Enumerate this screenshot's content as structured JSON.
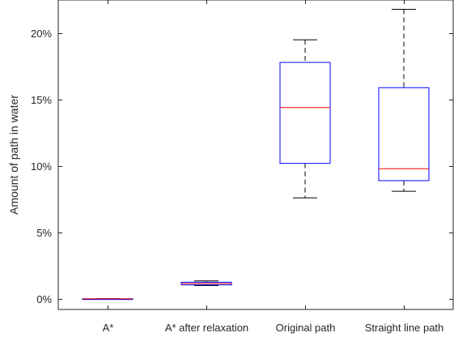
{
  "chart_data": {
    "type": "boxplot",
    "title": "",
    "xlabel": "",
    "ylabel": "Amount of path in water",
    "categories": [
      "A*",
      "A* after relaxation",
      "Original path",
      "Straight line path"
    ],
    "ylim": [
      -0.8,
      22.5
    ],
    "yticks": [
      0,
      5,
      10,
      15,
      20
    ],
    "ytick_labels": [
      "0%",
      "5%",
      "10%",
      "15%",
      "20%"
    ],
    "grid": false,
    "colors": {
      "box": "#0000ff",
      "median": "#ff0000",
      "whisker": "#000000",
      "axis": "#262626"
    },
    "boxes": [
      {
        "label": "A*",
        "whisker_low": 0.0,
        "q1": 0.0,
        "median": 0.0,
        "q3": 0.0,
        "whisker_high": 0.0
      },
      {
        "label": "A* after relaxation",
        "whisker_low": 1.0,
        "q1": 1.05,
        "median": 1.15,
        "q3": 1.25,
        "whisker_high": 1.35
      },
      {
        "label": "Original path",
        "whisker_low": 7.6,
        "q1": 10.2,
        "median": 14.4,
        "q3": 17.8,
        "whisker_high": 19.5
      },
      {
        "label": "Straight line path",
        "whisker_low": 8.1,
        "q1": 8.9,
        "median": 9.8,
        "q3": 15.9,
        "whisker_high": 21.8
      }
    ]
  }
}
